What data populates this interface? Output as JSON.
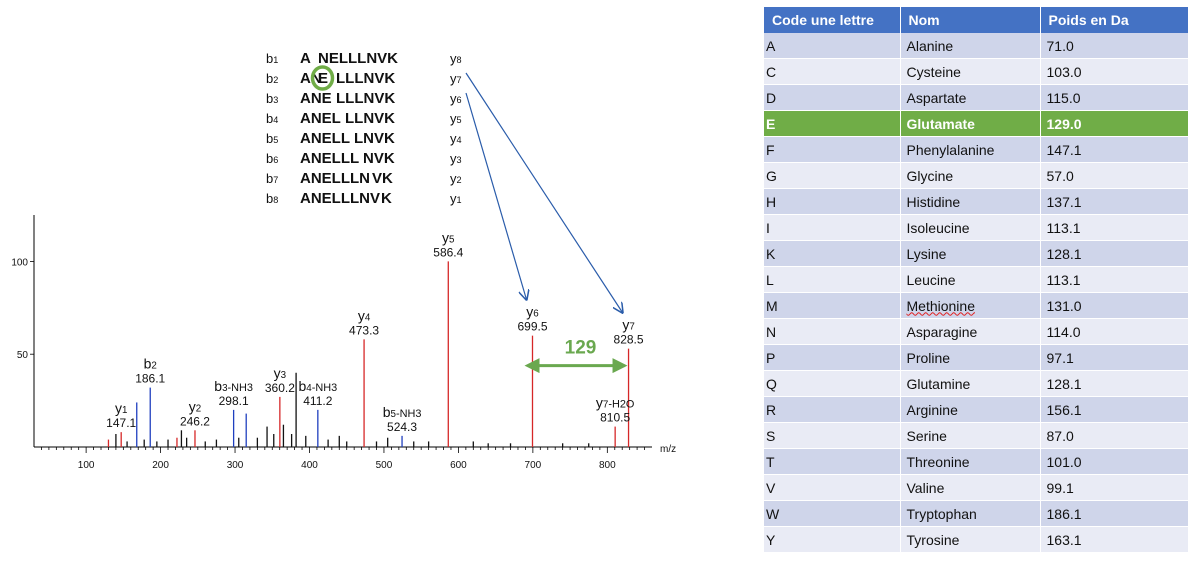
{
  "fragment_ladder": {
    "rows": [
      {
        "b": "b1",
        "seq_left": "A",
        "seq_right": "NELLLNVK",
        "y": "y8"
      },
      {
        "b": "b2",
        "seq_left": "AN",
        "highlight": "E",
        "seq_right": "LLLNVK",
        "y": "y7"
      },
      {
        "b": "b3",
        "seq_left": "ANE",
        "seq_right": "LLLNVK",
        "y": "y6"
      },
      {
        "b": "b4",
        "seq_left": "ANEL",
        "seq_right": "LLNVK",
        "y": "y5"
      },
      {
        "b": "b5",
        "seq_left": "ANELL",
        "seq_right": "LNVK",
        "y": "y4"
      },
      {
        "b": "b6",
        "seq_left": "ANELLL",
        "seq_right": "NVK",
        "y": "y3"
      },
      {
        "b": "b7",
        "seq_left": "ANELLLN",
        "seq_right": "VK",
        "y": "y2"
      },
      {
        "b": "b8",
        "seq_left": "ANELLLNV",
        "seq_right": "K",
        "y": "y1"
      }
    ],
    "highlight_color": "#70ad47"
  },
  "chart_data": {
    "type": "bar",
    "x_unit_label": "m/z",
    "xlim": [
      30,
      860
    ],
    "ylim": [
      0,
      125
    ],
    "x_ticks": [
      100,
      200,
      300,
      400,
      500,
      600,
      700,
      800
    ],
    "y_ticks": [
      50,
      100
    ],
    "colors": {
      "y_ion": "#d62728",
      "b_ion": "#1f3fbf",
      "other": "#111111",
      "annotation": "#6aa84f",
      "arrow": "#2a5caa"
    },
    "peaks": [
      {
        "mz": 130,
        "intensity": 4,
        "ion": "y"
      },
      {
        "mz": 140,
        "intensity": 7,
        "ion": "other"
      },
      {
        "mz": 147.1,
        "intensity": 8,
        "ion": "y"
      },
      {
        "mz": 155,
        "intensity": 3,
        "ion": "other"
      },
      {
        "mz": 168,
        "intensity": 24,
        "ion": "b"
      },
      {
        "mz": 178,
        "intensity": 4,
        "ion": "other"
      },
      {
        "mz": 186.1,
        "intensity": 32,
        "ion": "b"
      },
      {
        "mz": 195,
        "intensity": 3,
        "ion": "other"
      },
      {
        "mz": 210,
        "intensity": 4,
        "ion": "other"
      },
      {
        "mz": 222,
        "intensity": 5,
        "ion": "y"
      },
      {
        "mz": 228,
        "intensity": 9,
        "ion": "other"
      },
      {
        "mz": 235,
        "intensity": 5,
        "ion": "other"
      },
      {
        "mz": 246.2,
        "intensity": 9,
        "ion": "y"
      },
      {
        "mz": 260,
        "intensity": 3,
        "ion": "other"
      },
      {
        "mz": 275,
        "intensity": 4,
        "ion": "other"
      },
      {
        "mz": 298.1,
        "intensity": 20,
        "ion": "b"
      },
      {
        "mz": 305,
        "intensity": 5,
        "ion": "other"
      },
      {
        "mz": 315,
        "intensity": 18,
        "ion": "b"
      },
      {
        "mz": 330,
        "intensity": 5,
        "ion": "other"
      },
      {
        "mz": 343,
        "intensity": 11,
        "ion": "other"
      },
      {
        "mz": 352,
        "intensity": 7,
        "ion": "other"
      },
      {
        "mz": 360.2,
        "intensity": 27,
        "ion": "y"
      },
      {
        "mz": 365,
        "intensity": 12,
        "ion": "other"
      },
      {
        "mz": 376,
        "intensity": 7,
        "ion": "other"
      },
      {
        "mz": 382,
        "intensity": 40,
        "ion": "other"
      },
      {
        "mz": 395,
        "intensity": 6,
        "ion": "other"
      },
      {
        "mz": 411.2,
        "intensity": 20,
        "ion": "b"
      },
      {
        "mz": 425,
        "intensity": 4,
        "ion": "other"
      },
      {
        "mz": 440,
        "intensity": 6,
        "ion": "other"
      },
      {
        "mz": 450,
        "intensity": 3,
        "ion": "other"
      },
      {
        "mz": 473.3,
        "intensity": 58,
        "ion": "y"
      },
      {
        "mz": 490,
        "intensity": 3,
        "ion": "other"
      },
      {
        "mz": 505,
        "intensity": 5,
        "ion": "other"
      },
      {
        "mz": 524.3,
        "intensity": 6,
        "ion": "b"
      },
      {
        "mz": 540,
        "intensity": 3,
        "ion": "other"
      },
      {
        "mz": 560,
        "intensity": 3,
        "ion": "other"
      },
      {
        "mz": 586.4,
        "intensity": 100,
        "ion": "y"
      },
      {
        "mz": 620,
        "intensity": 3,
        "ion": "other"
      },
      {
        "mz": 640,
        "intensity": 2,
        "ion": "other"
      },
      {
        "mz": 670,
        "intensity": 2,
        "ion": "other"
      },
      {
        "mz": 699.5,
        "intensity": 60,
        "ion": "y"
      },
      {
        "mz": 740,
        "intensity": 2,
        "ion": "other"
      },
      {
        "mz": 775,
        "intensity": 2,
        "ion": "other"
      },
      {
        "mz": 810.5,
        "intensity": 11,
        "ion": "y"
      },
      {
        "mz": 828.5,
        "intensity": 53,
        "ion": "y"
      }
    ],
    "peak_labels": [
      {
        "ion": "y1",
        "value": "147.1",
        "mz": 147.1,
        "intensity": 8
      },
      {
        "ion": "b2",
        "value": "186.1",
        "mz": 186.1,
        "intensity": 32
      },
      {
        "ion": "y2",
        "value": "246.2",
        "mz": 246.2,
        "intensity": 9
      },
      {
        "ion": "b3-NH3",
        "value": "298.1",
        "mz": 298.1,
        "intensity": 20
      },
      {
        "ion": "y3",
        "value": "360.2",
        "mz": 360.2,
        "intensity": 27
      },
      {
        "ion": "b4-NH3",
        "value": "411.2",
        "mz": 411.2,
        "intensity": 20
      },
      {
        "ion": "y4",
        "value": "473.3",
        "mz": 473.3,
        "intensity": 58
      },
      {
        "ion": "b5-NH3",
        "value": "524.3",
        "mz": 524.3,
        "intensity": 6
      },
      {
        "ion": "y5",
        "value": "586.4",
        "mz": 586.4,
        "intensity": 100
      },
      {
        "ion": "y6",
        "value": "699.5",
        "mz": 699.5,
        "intensity": 60
      },
      {
        "ion": "y7-H2O",
        "value": "810.5",
        "mz": 810.5,
        "intensity": 11
      },
      {
        "ion": "y7",
        "value": "828.5",
        "mz": 828.5,
        "intensity": 53
      }
    ],
    "mass_difference": {
      "label": "129",
      "from_mz": 699.5,
      "to_mz": 828.5,
      "intensity": 32
    }
  },
  "table": {
    "headers": [
      "Code une lettre",
      "Nom",
      "Poids en Da"
    ],
    "highlight_row": "E",
    "header_color": "#4472c4",
    "highlight_color": "#70ad47",
    "rows": [
      [
        "A",
        "Alanine",
        "71.0"
      ],
      [
        "C",
        "Cysteine",
        "103.0"
      ],
      [
        "D",
        "Aspartate",
        "115.0"
      ],
      [
        "E",
        "Glutamate",
        "129.0"
      ],
      [
        "F",
        "Phenylalanine",
        "147.1"
      ],
      [
        "G",
        "Glycine",
        "57.0"
      ],
      [
        "H",
        "Histidine",
        "137.1"
      ],
      [
        "I",
        "Isoleucine",
        "113.1"
      ],
      [
        "K",
        "Lysine",
        "128.1"
      ],
      [
        "L",
        "Leucine",
        "113.1"
      ],
      [
        "M",
        "Methionine",
        "131.0"
      ],
      [
        "N",
        "Asparagine",
        "114.0"
      ],
      [
        "P",
        "Proline",
        "97.1"
      ],
      [
        "Q",
        "Glutamine",
        "128.1"
      ],
      [
        "R",
        "Arginine",
        "156.1"
      ],
      [
        "S",
        "Serine",
        "87.0"
      ],
      [
        "T",
        "Threonine",
        "101.0"
      ],
      [
        "V",
        "Valine",
        "99.1"
      ],
      [
        "W",
        "Tryptophan",
        "186.1"
      ],
      [
        "Y",
        "Tyrosine",
        "163.1"
      ]
    ]
  }
}
